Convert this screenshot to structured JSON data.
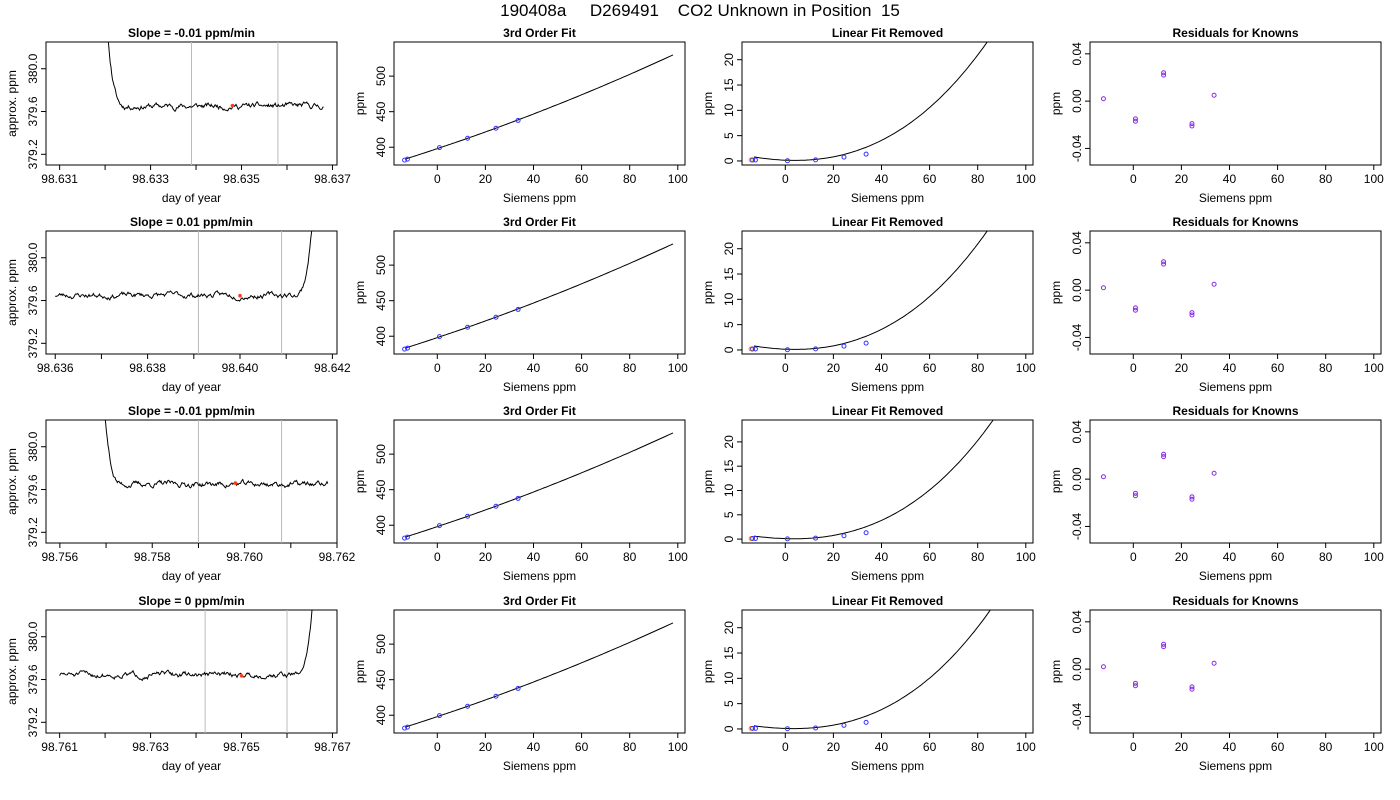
{
  "page": {
    "title": "190408a     D269491    CO2 Unknown in Position  15"
  },
  "styles": {
    "trace_color": "#000000",
    "window_line_color": "#bbbbbb",
    "highlight_color": "#ff3b1f",
    "fit_point_color": "#3333ff",
    "residual_color": "#8a2be2",
    "outlier_color": "#ff8c00"
  },
  "chart_data": [
    {
      "id": "r1-trace",
      "type": "line",
      "title": "Slope =  -0.01  ppm/min",
      "xlabel": "day of year",
      "ylabel": "approx. ppm",
      "xlim": [
        98.6307,
        98.6371
      ],
      "ylim": [
        379.1,
        380.25
      ],
      "xticks": [
        98.631,
        98.632,
        98.633,
        98.634,
        98.635,
        98.636,
        98.637
      ],
      "xtick_labels": [
        "98.631",
        "",
        "98.633",
        "",
        "98.635",
        "",
        "98.637"
      ],
      "yticks": [
        379.2,
        379.6,
        380.0
      ],
      "ytick_labels": [
        "379.2",
        "379.6",
        "380.0"
      ],
      "vlines": [
        98.6339,
        98.6358
      ],
      "highlight": {
        "x": 98.6348,
        "y": 379.655
      },
      "trace": {
        "start": 98.6315,
        "end": 98.6368,
        "baseline": 379.65,
        "spike": "start",
        "seed": 11
      }
    },
    {
      "id": "r1-fit",
      "type": "line",
      "title": "3rd Order Fit",
      "xlabel": "Siemens ppm",
      "ylabel": "ppm",
      "xlim": [
        -18,
        103
      ],
      "ylim": [
        375,
        548
      ],
      "xticks": [
        0,
        20,
        40,
        60,
        80,
        100
      ],
      "yticks": [
        400,
        450,
        500
      ],
      "curve": {
        "a": 398,
        "b": 1.13,
        "c": 0.0022,
        "x_from": -13,
        "x_to": 98
      },
      "points": [
        [
          -13.6,
          381.9
        ],
        [
          -12.4,
          383.3
        ],
        [
          0.9,
          399.5
        ],
        [
          12.6,
          412.6
        ],
        [
          24.4,
          426.7
        ],
        [
          33.6,
          437.7
        ]
      ]
    },
    {
      "id": "r1-lin",
      "type": "line",
      "title": "Linear Fit Removed",
      "xlabel": "Siemens ppm",
      "ylabel": "ppm",
      "xlim": [
        -18,
        103
      ],
      "ylim": [
        -0.8,
        23.5
      ],
      "xticks": [
        0,
        20,
        40,
        60,
        80,
        100
      ],
      "yticks": [
        0,
        5,
        10,
        15,
        20
      ],
      "curve": {
        "a": 0.15,
        "b": -0.02,
        "c": 0.0024,
        "d": 1.37e-05,
        "x_from": -13,
        "x_to": 98
      },
      "points": [
        [
          -13.6,
          0.2
        ],
        [
          -12.4,
          0.2
        ],
        [
          0.9,
          0.05
        ],
        [
          12.6,
          0.22
        ],
        [
          24.4,
          0.75
        ],
        [
          33.6,
          1.35
        ]
      ],
      "orange_points": [
        [
          -14.2,
          0.2
        ]
      ]
    },
    {
      "id": "r1-res",
      "type": "scatter",
      "title": "Residuals for Knowns",
      "xlabel": "Siemens ppm",
      "ylabel": "ppm",
      "xlim": [
        -18,
        103
      ],
      "ylim": [
        -0.054,
        0.05
      ],
      "xticks": [
        0,
        20,
        40,
        60,
        80,
        100
      ],
      "yticks": [
        -0.04,
        0.0,
        0.04
      ],
      "ytick_labels": [
        "-0.04",
        "0.00",
        "0.04"
      ],
      "points": [
        [
          -12.4,
          0.002
        ],
        [
          0.9,
          -0.015
        ],
        [
          0.9,
          -0.017
        ],
        [
          12.6,
          0.024
        ],
        [
          12.6,
          0.022
        ],
        [
          24.4,
          -0.019
        ],
        [
          24.4,
          -0.021
        ],
        [
          33.6,
          0.005
        ]
      ]
    },
    {
      "id": "r2-trace",
      "type": "line",
      "title": "Slope =  0.01  ppm/min",
      "xlabel": "day of year",
      "ylabel": "approx. ppm",
      "xlim": [
        98.6358,
        98.6421
      ],
      "ylim": [
        379.1,
        380.25
      ],
      "xticks": [
        98.636,
        98.637,
        98.638,
        98.639,
        98.64,
        98.641,
        98.642
      ],
      "xtick_labels": [
        "98.636",
        "",
        "98.638",
        "",
        "98.640",
        "",
        "98.642"
      ],
      "yticks": [
        379.2,
        379.6,
        380.0
      ],
      "ytick_labels": [
        "379.2",
        "379.6",
        "380.0"
      ],
      "vlines": [
        98.6391,
        98.6409
      ],
      "highlight": {
        "x": 98.64,
        "y": 379.645
      },
      "trace": {
        "start": 98.636,
        "end": 98.642,
        "baseline": 379.65,
        "spike": "end",
        "seed": 23
      }
    },
    {
      "id": "r2-fit",
      "type": "line",
      "title": "3rd Order Fit",
      "xlabel": "Siemens ppm",
      "ylabel": "ppm",
      "xlim": [
        -18,
        103
      ],
      "ylim": [
        375,
        548
      ],
      "xticks": [
        0,
        20,
        40,
        60,
        80,
        100
      ],
      "yticks": [
        400,
        450,
        500
      ],
      "curve": {
        "a": 398,
        "b": 1.13,
        "c": 0.0022,
        "x_from": -13,
        "x_to": 98
      },
      "points": [
        [
          -13.6,
          381.9
        ],
        [
          -12.4,
          383.3
        ],
        [
          0.9,
          399.5
        ],
        [
          12.6,
          412.6
        ],
        [
          24.4,
          426.7
        ],
        [
          33.6,
          437.7
        ]
      ]
    },
    {
      "id": "r2-lin",
      "type": "line",
      "title": "Linear Fit Removed",
      "xlabel": "Siemens ppm",
      "ylabel": "ppm",
      "xlim": [
        -18,
        103
      ],
      "ylim": [
        -0.8,
        23.5
      ],
      "xticks": [
        0,
        20,
        40,
        60,
        80,
        100
      ],
      "yticks": [
        0,
        5,
        10,
        15,
        20
      ],
      "curve": {
        "a": 0.15,
        "b": -0.02,
        "c": 0.0024,
        "d": 1.37e-05,
        "x_from": -13,
        "x_to": 98
      },
      "points": [
        [
          -13.6,
          0.2
        ],
        [
          -12.4,
          0.2
        ],
        [
          0.9,
          0.05
        ],
        [
          12.6,
          0.22
        ],
        [
          24.4,
          0.75
        ],
        [
          33.6,
          1.35
        ]
      ],
      "orange_points": [
        [
          -14.2,
          0.2
        ]
      ]
    },
    {
      "id": "r2-res",
      "type": "scatter",
      "title": "Residuals for Knowns",
      "xlabel": "Siemens ppm",
      "ylabel": "ppm",
      "xlim": [
        -18,
        103
      ],
      "ylim": [
        -0.054,
        0.05
      ],
      "xticks": [
        0,
        20,
        40,
        60,
        80,
        100
      ],
      "yticks": [
        -0.04,
        0.0,
        0.04
      ],
      "ytick_labels": [
        "-0.04",
        "0.00",
        "0.04"
      ],
      "points": [
        [
          -12.4,
          0.002
        ],
        [
          0.9,
          -0.015
        ],
        [
          0.9,
          -0.017
        ],
        [
          12.6,
          0.024
        ],
        [
          12.6,
          0.022
        ],
        [
          24.4,
          -0.019
        ],
        [
          24.4,
          -0.021
        ],
        [
          33.6,
          0.005
        ]
      ]
    },
    {
      "id": "r3-trace",
      "type": "line",
      "title": "Slope =  -0.01  ppm/min",
      "xlabel": "day of year",
      "ylabel": "approx. ppm",
      "xlim": [
        98.7557,
        98.762
      ],
      "ylim": [
        379.1,
        380.25
      ],
      "xticks": [
        98.756,
        98.757,
        98.758,
        98.759,
        98.76,
        98.761,
        98.762
      ],
      "xtick_labels": [
        "98.756",
        "",
        "98.758",
        "",
        "98.760",
        "",
        "98.762"
      ],
      "yticks": [
        379.2,
        379.6,
        380.0
      ],
      "ytick_labels": [
        "379.2",
        "379.6",
        "380.0"
      ],
      "vlines": [
        98.759,
        98.7608
      ],
      "highlight": {
        "x": 98.7598,
        "y": 379.66
      },
      "trace": {
        "start": 98.7564,
        "end": 98.7618,
        "baseline": 379.65,
        "spike": "start",
        "seed": 37
      }
    },
    {
      "id": "r3-fit",
      "type": "line",
      "title": "3rd Order Fit",
      "xlabel": "Siemens ppm",
      "ylabel": "ppm",
      "xlim": [
        -18,
        103
      ],
      "ylim": [
        375,
        548
      ],
      "xticks": [
        0,
        20,
        40,
        60,
        80,
        100
      ],
      "yticks": [
        400,
        450,
        500
      ],
      "curve": {
        "a": 398,
        "b": 1.13,
        "c": 0.0022,
        "x_from": -13,
        "x_to": 98
      },
      "points": [
        [
          -13.6,
          381.9
        ],
        [
          -12.4,
          383.3
        ],
        [
          0.9,
          399.5
        ],
        [
          12.6,
          412.6
        ],
        [
          24.4,
          426.7
        ],
        [
          33.6,
          437.7
        ]
      ]
    },
    {
      "id": "r3-lin",
      "type": "line",
      "title": "Linear Fit Removed",
      "xlabel": "Siemens ppm",
      "ylabel": "ppm",
      "xlim": [
        -18,
        103
      ],
      "ylim": [
        -0.8,
        24.5
      ],
      "xticks": [
        0,
        20,
        40,
        60,
        80,
        100
      ],
      "yticks": [
        0,
        5,
        10,
        15,
        20
      ],
      "curve": {
        "a": 0.1,
        "b": -0.015,
        "c": 0.0021,
        "d": 1.55e-05,
        "x_from": -13,
        "x_to": 98
      },
      "points": [
        [
          -13.6,
          0.12
        ],
        [
          -12.4,
          0.12
        ],
        [
          0.9,
          0.05
        ],
        [
          12.6,
          0.2
        ],
        [
          24.4,
          0.7
        ],
        [
          33.6,
          1.3
        ]
      ],
      "orange_points": [
        [
          -14.2,
          0.12
        ]
      ]
    },
    {
      "id": "r3-res",
      "type": "scatter",
      "title": "Residuals for Knowns",
      "xlabel": "Siemens ppm",
      "ylabel": "ppm",
      "xlim": [
        -18,
        103
      ],
      "ylim": [
        -0.054,
        0.05
      ],
      "xticks": [
        0,
        20,
        40,
        60,
        80,
        100
      ],
      "yticks": [
        -0.04,
        0.0,
        0.04
      ],
      "ytick_labels": [
        "-0.04",
        "0.00",
        "0.04"
      ],
      "points": [
        [
          -12.4,
          0.002
        ],
        [
          0.9,
          -0.012
        ],
        [
          0.9,
          -0.014
        ],
        [
          12.6,
          0.021
        ],
        [
          12.6,
          0.019
        ],
        [
          24.4,
          -0.015
        ],
        [
          24.4,
          -0.017
        ],
        [
          33.6,
          0.005
        ]
      ]
    },
    {
      "id": "r4-trace",
      "type": "line",
      "title": "Slope =  0  ppm/min",
      "xlabel": "day of year",
      "ylabel": "approx. ppm",
      "xlim": [
        98.7607,
        98.7671
      ],
      "ylim": [
        379.1,
        380.25
      ],
      "xticks": [
        98.761,
        98.762,
        98.763,
        98.764,
        98.765,
        98.766,
        98.767
      ],
      "xtick_labels": [
        "98.761",
        "",
        "98.763",
        "",
        "98.765",
        "",
        "98.767"
      ],
      "yticks": [
        379.2,
        379.6,
        380.0
      ],
      "ytick_labels": [
        "379.2",
        "379.6",
        "380.0"
      ],
      "vlines": [
        98.7642,
        98.766
      ],
      "highlight": {
        "x": 98.765,
        "y": 379.635
      },
      "trace": {
        "start": 98.761,
        "end": 98.767,
        "baseline": 379.645,
        "spike": "end",
        "seed": 51
      }
    },
    {
      "id": "r4-fit",
      "type": "line",
      "title": "3rd Order Fit",
      "xlabel": "Siemens ppm",
      "ylabel": "ppm",
      "xlim": [
        -18,
        103
      ],
      "ylim": [
        375,
        548
      ],
      "xticks": [
        0,
        20,
        40,
        60,
        80,
        100
      ],
      "yticks": [
        400,
        450,
        500
      ],
      "curve": {
        "a": 398,
        "b": 1.13,
        "c": 0.0022,
        "x_from": -13,
        "x_to": 98
      },
      "points": [
        [
          -13.6,
          381.9
        ],
        [
          -12.4,
          383.3
        ],
        [
          0.9,
          399.5
        ],
        [
          12.6,
          412.6
        ],
        [
          24.4,
          426.7
        ],
        [
          33.6,
          437.7
        ]
      ]
    },
    {
      "id": "r4-lin",
      "type": "line",
      "title": "Linear Fit Removed",
      "xlabel": "Siemens ppm",
      "ylabel": "ppm",
      "xlim": [
        -18,
        103
      ],
      "ylim": [
        -0.8,
        23.5
      ],
      "xticks": [
        0,
        20,
        40,
        60,
        80,
        100
      ],
      "yticks": [
        0,
        5,
        10,
        15,
        20
      ],
      "curve": {
        "a": 0.1,
        "b": -0.015,
        "c": 0.0021,
        "d": 1.52e-05,
        "x_from": -13,
        "x_to": 98
      },
      "points": [
        [
          -13.6,
          0.12
        ],
        [
          -12.4,
          0.12
        ],
        [
          0.9,
          0.05
        ],
        [
          12.6,
          0.2
        ],
        [
          24.4,
          0.7
        ],
        [
          33.6,
          1.3
        ]
      ],
      "orange_points": [
        [
          -14.2,
          0.12
        ]
      ]
    },
    {
      "id": "r4-res",
      "type": "scatter",
      "title": "Residuals for Knowns",
      "xlabel": "Siemens ppm",
      "ylabel": "ppm",
      "xlim": [
        -18,
        103
      ],
      "ylim": [
        -0.054,
        0.05
      ],
      "xticks": [
        0,
        20,
        40,
        60,
        80,
        100
      ],
      "yticks": [
        -0.04,
        0.0,
        0.04
      ],
      "ytick_labels": [
        "-0.04",
        "0.00",
        "0.04"
      ],
      "points": [
        [
          -12.4,
          0.002
        ],
        [
          0.9,
          -0.012
        ],
        [
          0.9,
          -0.014
        ],
        [
          12.6,
          0.021
        ],
        [
          12.6,
          0.019
        ],
        [
          24.4,
          -0.015
        ],
        [
          24.4,
          -0.017
        ],
        [
          33.6,
          0.005
        ]
      ]
    }
  ]
}
